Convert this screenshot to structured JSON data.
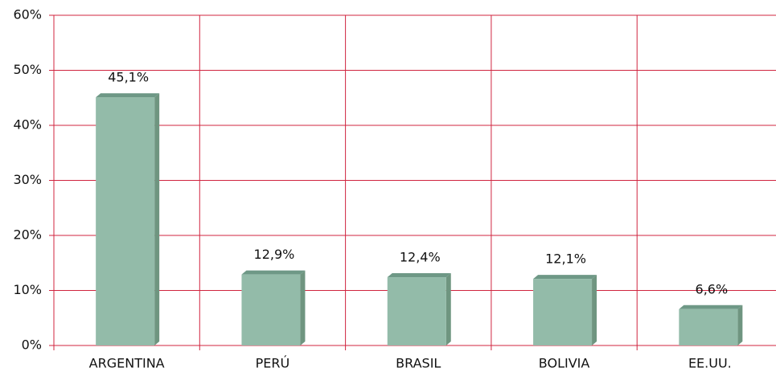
{
  "chart_data": {
    "type": "bar",
    "categories": [
      "ARGENTINA",
      "PERÚ",
      "BRASIL",
      "BOLIVIA",
      "EE.UU."
    ],
    "values": [
      45.1,
      12.9,
      12.4,
      12.1,
      6.6
    ],
    "value_labels": [
      "45,1%",
      "12,9%",
      "12,4%",
      "12,1%",
      "6,6%"
    ],
    "color": "#93bba9",
    "ylim": [
      0,
      60
    ],
    "yticks": [
      {
        "value": 0,
        "label": "0%"
      },
      {
        "value": 10,
        "label": "10%"
      },
      {
        "value": 20,
        "label": "20%"
      },
      {
        "value": 30,
        "label": "30%"
      },
      {
        "value": 40,
        "label": "40%"
      },
      {
        "value": 50,
        "label": "50%"
      },
      {
        "value": 60,
        "label": "60%"
      }
    ],
    "grid": true
  }
}
